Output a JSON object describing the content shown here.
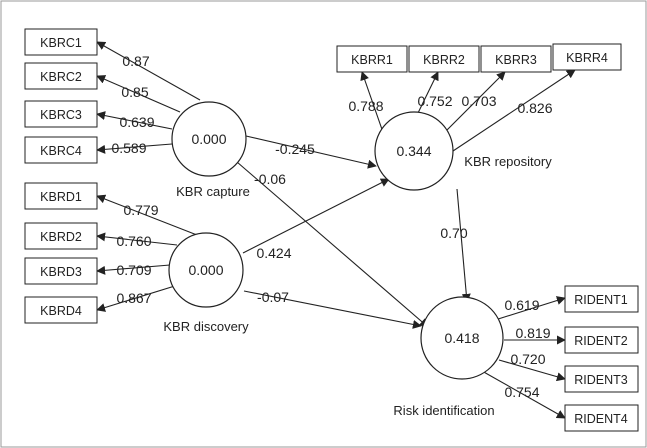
{
  "constructs": [
    {
      "id": "capture",
      "name": "KBR capture",
      "value": "0.000"
    },
    {
      "id": "discovery",
      "name": "KBR discovery",
      "value": "0.000"
    },
    {
      "id": "repository",
      "name": "KBR repository",
      "value": "0.344"
    },
    {
      "id": "risk",
      "name": "Risk identification",
      "value": "0.418"
    }
  ],
  "indicators": [
    {
      "id": "kbrc1",
      "label": "KBRC1",
      "loading": "0.87"
    },
    {
      "id": "kbrc2",
      "label": "KBRC2",
      "loading": "0.85"
    },
    {
      "id": "kbrc3",
      "label": "KBRC3",
      "loading": "0.639"
    },
    {
      "id": "kbrc4",
      "label": "KBRC4",
      "loading": "0.589"
    },
    {
      "id": "kbrd1",
      "label": "KBRD1",
      "loading": "0.779"
    },
    {
      "id": "kbrd2",
      "label": "KBRD2",
      "loading": "0.760"
    },
    {
      "id": "kbrd3",
      "label": "KBRD3",
      "loading": "0.709"
    },
    {
      "id": "kbrd4",
      "label": "KBRD4",
      "loading": "0.867"
    },
    {
      "id": "kbrr1",
      "label": "KBRR1",
      "loading": "0.788"
    },
    {
      "id": "kbrr2",
      "label": "KBRR2",
      "loading": "0.752"
    },
    {
      "id": "kbrr3",
      "label": "KBRR3",
      "loading": "0.703"
    },
    {
      "id": "kbrr4",
      "label": "KBRR4",
      "loading": "0.826"
    },
    {
      "id": "rident1",
      "label": "RIDENT1",
      "loading": "0.619"
    },
    {
      "id": "rident2",
      "label": "RIDENT2",
      "loading": "0.819"
    },
    {
      "id": "rident3",
      "label": "RIDENT3",
      "loading": "0.720"
    },
    {
      "id": "rident4",
      "label": "RIDENT4",
      "loading": "0.754"
    }
  ],
  "paths": [
    {
      "id": "capture-to-repository",
      "coefficient": "-0.245"
    },
    {
      "id": "capture-to-risk",
      "coefficient": "-0.06"
    },
    {
      "id": "discovery-to-repository",
      "coefficient": "0.424"
    },
    {
      "id": "discovery-to-risk",
      "coefficient": "-0.07"
    },
    {
      "id": "repository-to-risk",
      "coefficient": "0.70"
    }
  ]
}
